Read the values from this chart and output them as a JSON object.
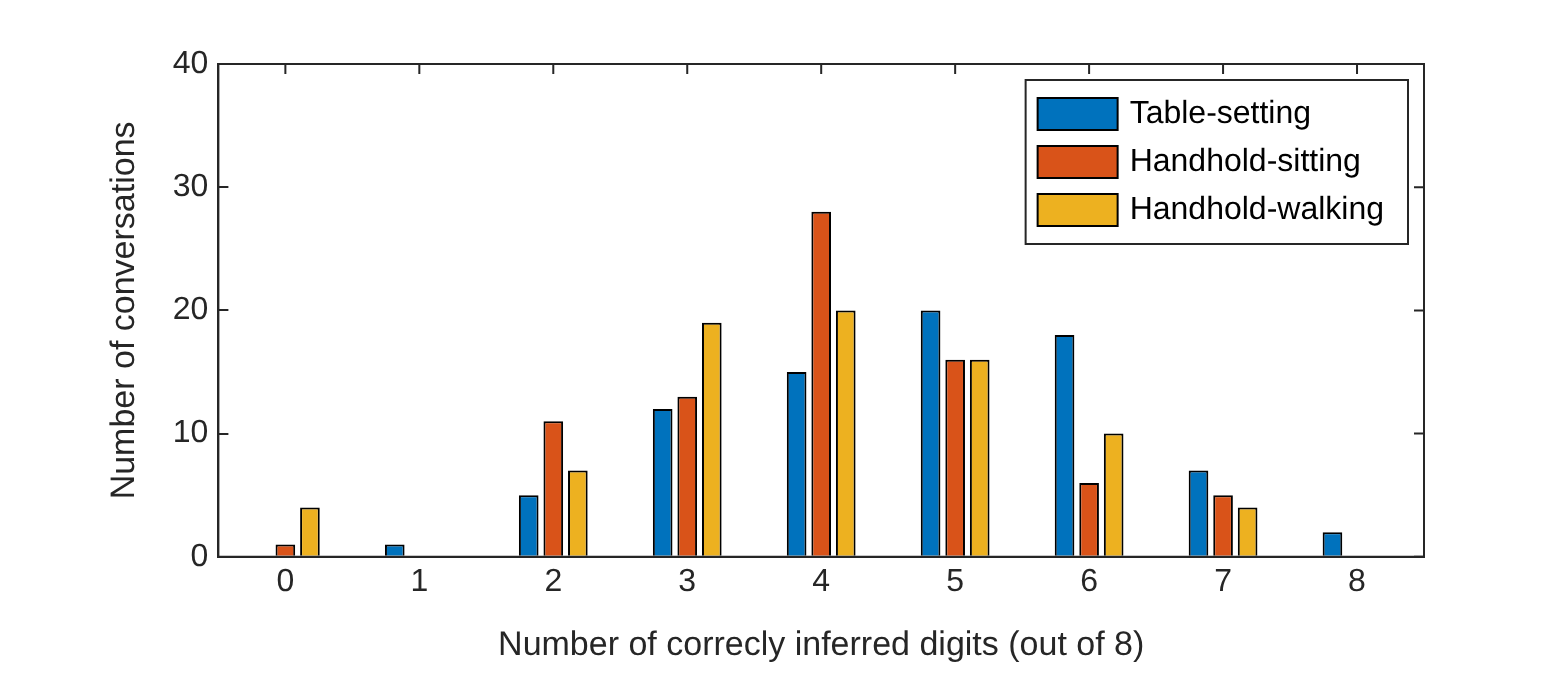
{
  "chart_data": {
    "type": "bar",
    "xlabel": "Number of correcly inferred digits (out of 8)",
    "ylabel": "Number of conversations",
    "categories": [
      "0",
      "1",
      "2",
      "3",
      "4",
      "5",
      "6",
      "7",
      "8"
    ],
    "series": [
      {
        "name": "Table-setting",
        "color": "#0072bd",
        "values": [
          0,
          1,
          5,
          12,
          15,
          20,
          18,
          7,
          2
        ]
      },
      {
        "name": "Handhold-sitting",
        "color": "#d95319",
        "values": [
          1,
          0,
          11,
          13,
          28,
          16,
          6,
          5,
          0
        ]
      },
      {
        "name": "Handhold-walking",
        "color": "#edb120",
        "values": [
          4,
          0,
          7,
          19,
          20,
          16,
          10,
          4,
          0
        ]
      }
    ],
    "ylim": [
      0,
      40
    ],
    "yticks": [
      0,
      10,
      20,
      30,
      40
    ],
    "grid": false,
    "legend": "top right"
  }
}
